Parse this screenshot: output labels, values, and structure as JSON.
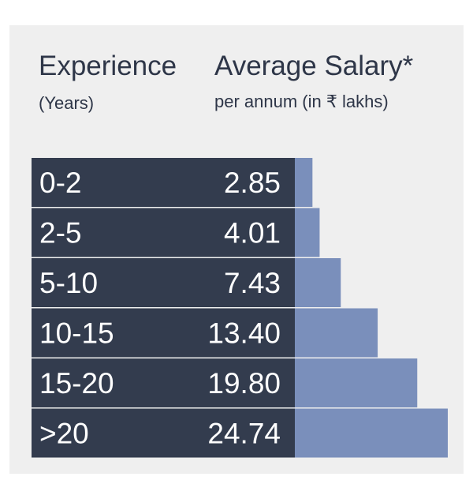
{
  "header": {
    "experience_title": "Experience",
    "experience_sub": "(Years)",
    "salary_title": "Average Salary*",
    "salary_sub": "per annum (in ₹ lakhs)"
  },
  "colors": {
    "panel_bg": "#efefef",
    "label_bg": "#333c4e",
    "bar": "#7a8fbb",
    "text_dark": "#2e3648",
    "text_light": "#ffffff"
  },
  "chart_data": {
    "type": "bar",
    "orientation": "horizontal",
    "xlabel": "Experience (Years)",
    "ylabel": "Average Salary* per annum (in ₹ lakhs)",
    "categories": [
      "0-2",
      "2-5",
      "5-10",
      "10-15",
      "15-20",
      ">20"
    ],
    "values": [
      2.85,
      4.01,
      7.43,
      13.4,
      19.8,
      24.74
    ],
    "value_labels": [
      "2.85",
      "4.01",
      "7.43",
      "13.40",
      "19.80",
      "24.74"
    ],
    "grid": false,
    "legend": "none"
  }
}
